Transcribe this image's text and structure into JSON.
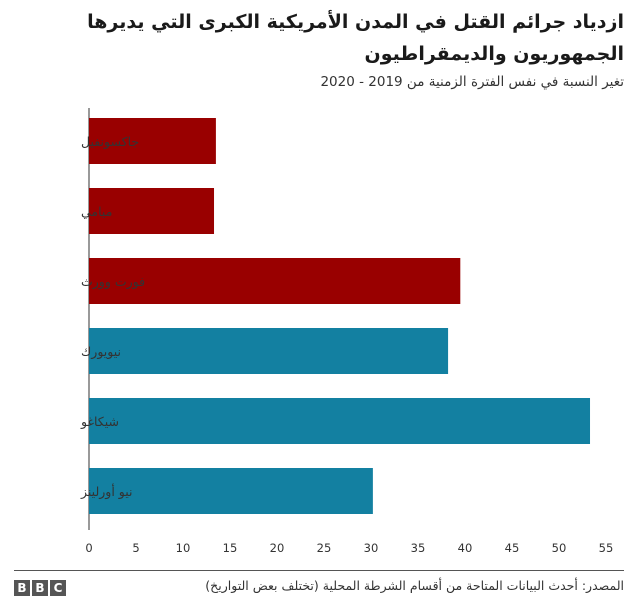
{
  "title": "ازدياد جرائم القتل في المدن الأمريكية الكبرى التي يديرها الجمهوريون والديمقراطيون",
  "subtitle": "تغير النسبة في نفس الفترة الزمنية من 2019 - 2020",
  "source": "المصدر: أحدث البيانات المتاحة من أقسام الشرطة المحلية (تختلف بعض التواريخ)",
  "logo": [
    "B",
    "B",
    "C"
  ],
  "colors": {
    "republican": "#990000",
    "democrat": "#1380a1",
    "grid": "#cccccc",
    "axis": "#333333"
  },
  "chart_data": {
    "type": "bar",
    "orientation": "horizontal",
    "title": "ازدياد جرائم القتل في المدن الأمريكية الكبرى التي يديرها الجمهوريون والديمقراطيون",
    "subtitle": "تغير النسبة في نفس الفترة الزمنية من 2019 - 2020",
    "categories": [
      "جاكسونفيل",
      "ميامي",
      "فورت وورث",
      "نيويورك",
      "شيكاغو",
      "نيو أورلينز"
    ],
    "values": [
      13.5,
      13.3,
      39.5,
      38.2,
      53.3,
      30.2
    ],
    "bar_colors": [
      "#990000",
      "#990000",
      "#990000",
      "#1380a1",
      "#1380a1",
      "#1380a1"
    ],
    "xlim": [
      0,
      55
    ],
    "xticks": [
      0,
      5,
      10,
      15,
      20,
      25,
      30,
      35,
      40,
      45,
      50,
      55
    ],
    "xlabel": "",
    "ylabel": "",
    "grid": true,
    "legend": "none"
  }
}
